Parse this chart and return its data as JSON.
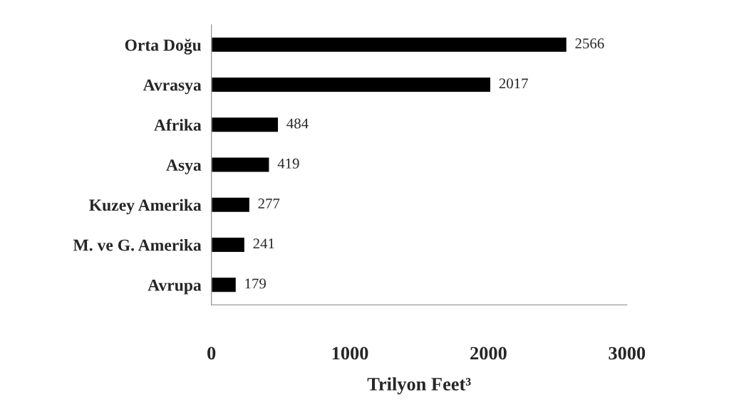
{
  "chart_data": {
    "type": "bar",
    "orientation": "horizontal",
    "categories": [
      "Orta Doğu",
      "Avrasya",
      "Afrika",
      "Asya",
      "Kuzey Amerika",
      "M. ve G. Amerika",
      "Avrupa"
    ],
    "values": [
      2566,
      2017,
      484,
      419,
      277,
      241,
      179
    ],
    "color": "#000000",
    "xlim": [
      0,
      3000
    ],
    "xticks": [
      0,
      1000,
      2000,
      3000
    ],
    "xlabel": "Trilyon Feet³",
    "data_labels": true,
    "grid": false,
    "legend": false
  }
}
